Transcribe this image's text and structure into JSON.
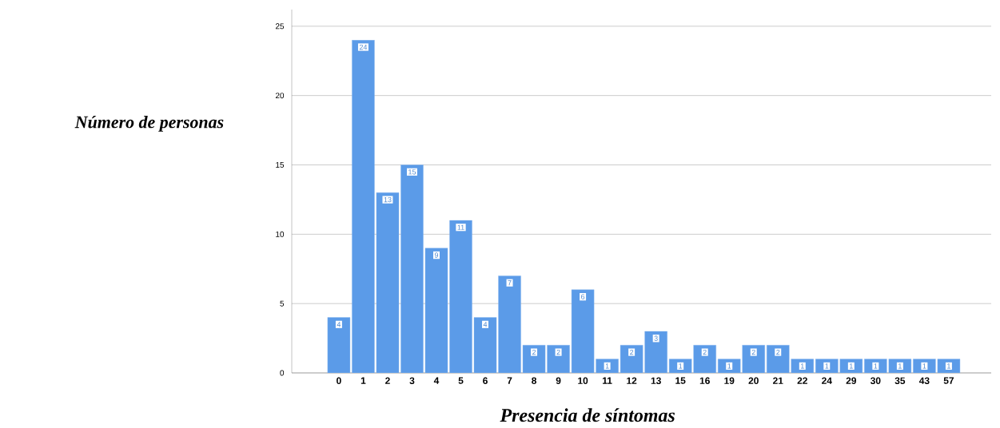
{
  "chart_data": {
    "type": "bar",
    "xlabel": "Presencia de síntomas",
    "ylabel": "Número de personas",
    "categories": [
      "0",
      "1",
      "2",
      "3",
      "4",
      "5",
      "6",
      "7",
      "8",
      "9",
      "10",
      "11",
      "12",
      "13",
      "15",
      "16",
      "19",
      "20",
      "21",
      "22",
      "24",
      "29",
      "30",
      "35",
      "43",
      "57"
    ],
    "values": [
      4,
      24,
      13,
      15,
      9,
      11,
      4,
      7,
      2,
      2,
      6,
      1,
      2,
      3,
      1,
      2,
      1,
      2,
      2,
      1,
      1,
      1,
      1,
      1,
      1,
      1
    ],
    "color": "#5b9be8",
    "ylim": [
      0,
      26.2
    ],
    "yticks": [
      0,
      5,
      10,
      15,
      20,
      25
    ],
    "grid": "y",
    "data_labels": true
  }
}
